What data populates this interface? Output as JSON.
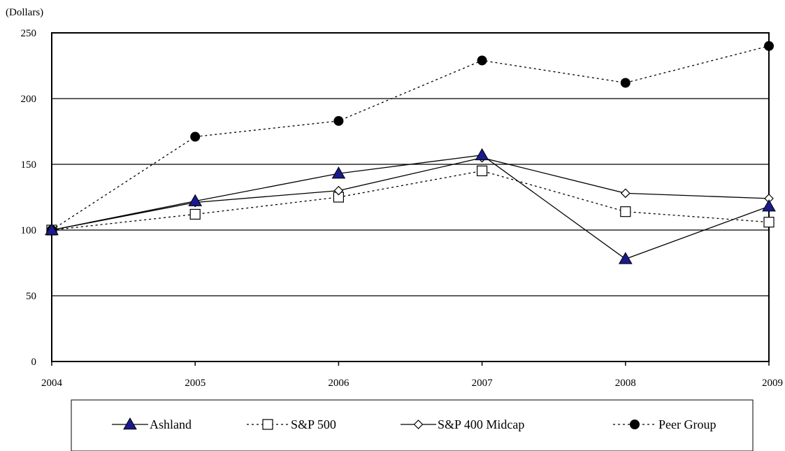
{
  "chart_data": {
    "type": "line",
    "unit_label": "(Dollars)",
    "x": [
      "2004",
      "2005",
      "2006",
      "2007",
      "2008",
      "2009"
    ],
    "ylim": [
      0,
      250
    ],
    "yticks": [
      "0",
      "50",
      "100",
      "150",
      "200",
      "250"
    ],
    "grid": true,
    "legend_position": "bottom",
    "series": [
      {
        "name": "Ashland",
        "values": [
          100,
          122,
          143,
          157,
          78,
          118
        ],
        "marker": "filled-triangle",
        "line": "solid",
        "marker_color": "#1a1a8c"
      },
      {
        "name": "S&P 500",
        "values": [
          100,
          112,
          125,
          145,
          114,
          106
        ],
        "marker": "open-square",
        "line": "dotted",
        "marker_color": "#ffffff"
      },
      {
        "name": "S&P 400 Midcap",
        "values": [
          100,
          121,
          130,
          155,
          128,
          124
        ],
        "marker": "open-diamond",
        "line": "solid",
        "marker_color": "#ffffff"
      },
      {
        "name": "Peer Group",
        "values": [
          100,
          171,
          183,
          229,
          212,
          240
        ],
        "marker": "filled-circle",
        "line": "dotted",
        "marker_color": "#000000"
      }
    ]
  }
}
